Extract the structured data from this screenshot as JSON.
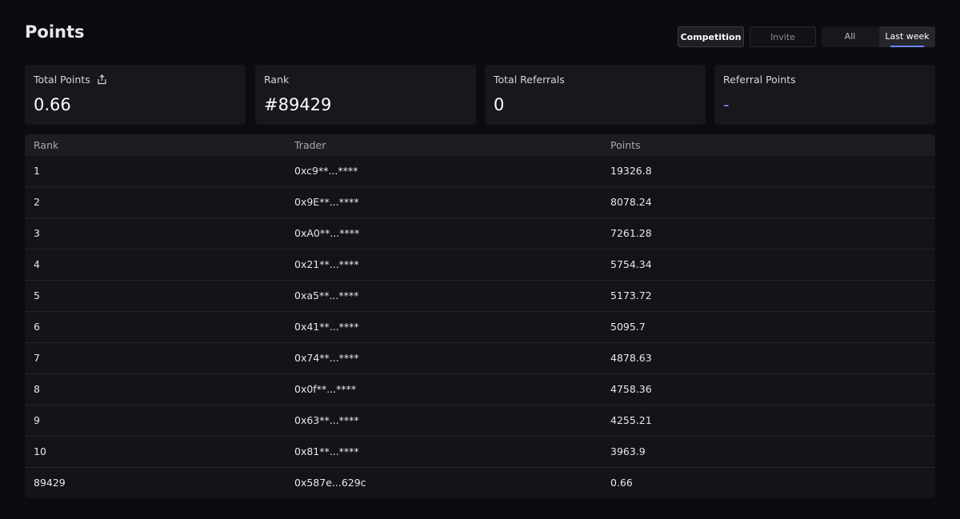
{
  "header": {
    "title": "Points",
    "tabs": [
      "Competition",
      "Invite"
    ],
    "period_filter": [
      "All",
      "Last week"
    ]
  },
  "cards": [
    {
      "label": "Total Points",
      "value": "0.66"
    },
    {
      "label": "Rank",
      "value": "#89429"
    },
    {
      "label": "Total Referrals",
      "value": "0"
    },
    {
      "label": "Referral Points",
      "value": "-"
    }
  ],
  "table": {
    "columns": [
      "Rank",
      "Trader",
      "Points"
    ],
    "rows": [
      [
        "1",
        "0xc9**...****",
        "19326.8"
      ],
      [
        "2",
        "0x9E**...****",
        "8078.24"
      ],
      [
        "3",
        "0xA0**...****",
        "7261.28"
      ],
      [
        "4",
        "0x21**...****",
        "5754.34"
      ],
      [
        "5",
        "0xa5**...****",
        "5173.72"
      ],
      [
        "6",
        "0x41**...****",
        "5095.7"
      ],
      [
        "7",
        "0x74**...****",
        "4878.63"
      ],
      [
        "8",
        "0x0f**...****",
        "4758.36"
      ],
      [
        "9",
        "0x63**...****",
        "4255.21"
      ],
      [
        "10",
        "0x81**...****",
        "3963.9"
      ],
      [
        "89429",
        "0x587e...629c",
        "0.66"
      ]
    ]
  }
}
